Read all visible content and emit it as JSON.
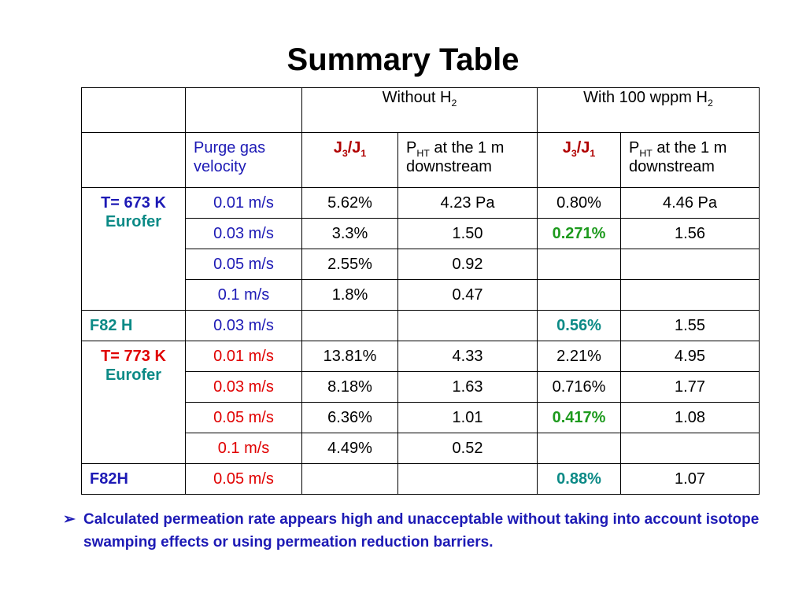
{
  "title": "Summary Table",
  "header": {
    "without": "Without H",
    "without_sub": "2",
    "with": "With 100 wppm H",
    "with_sub": "2"
  },
  "subheader": {
    "purge_label": "Purge gas velocity",
    "ratio_J": "J",
    "ratio_sub3": "3",
    "ratio_slash": "/J",
    "ratio_sub1": "1",
    "pressure_P": "P",
    "pressure_sub": "HT",
    "pressure_rest": " at the 1 m downstream"
  },
  "groups": {
    "g673_temp": "T= 673 K",
    "g673_mat": "Eurofer",
    "f82h_a": "F82 H",
    "g773_temp": "T= 773 K",
    "g773_mat": "Eurofer",
    "f82h_b": "F82H"
  },
  "rows": [
    {
      "velocity": "0.01 m/s",
      "j_without": "5.62%",
      "p_without": "4.23 Pa",
      "j_with": "0.80%",
      "p_with": "4.46 Pa"
    },
    {
      "velocity": "0.03 m/s",
      "j_without": "3.3%",
      "p_without": "1.50",
      "j_with": "0.271%",
      "p_with": "1.56"
    },
    {
      "velocity": "0.05 m/s",
      "j_without": "2.55%",
      "p_without": "0.92",
      "j_with": "",
      "p_with": ""
    },
    {
      "velocity": "0.1 m/s",
      "j_without": "1.8%",
      "p_without": "0.47",
      "j_with": "",
      "p_with": ""
    },
    {
      "velocity": "0.03 m/s",
      "j_without": "",
      "p_without": "",
      "j_with": "0.56%",
      "p_with": "1.55"
    },
    {
      "velocity": "0.01 m/s",
      "j_without": "13.81%",
      "p_without": "4.33",
      "j_with": "2.21%",
      "p_with": "4.95"
    },
    {
      "velocity": "0.03 m/s",
      "j_without": "8.18%",
      "p_without": "1.63",
      "j_with": "0.716%",
      "p_with": "1.77"
    },
    {
      "velocity": "0.05 m/s",
      "j_without": "6.36%",
      "p_without": "1.01",
      "j_with": "0.417%",
      "p_with": "1.08"
    },
    {
      "velocity": "0.1 m/s",
      "j_without": "4.49%",
      "p_without": "0.52",
      "j_with": "",
      "p_with": ""
    },
    {
      "velocity": "0.05 m/s",
      "j_without": "",
      "p_without": "",
      "j_with": "0.88%",
      "p_with": "1.07"
    }
  ],
  "note": {
    "bullet": "➢",
    "text": "Calculated permeation rate appears high and unacceptable without taking into account isotope swamping effects or using permeation reduction barriers."
  },
  "colors": {
    "blue": "#1d1ab5",
    "red": "#e00000",
    "teal": "#0b8a86",
    "green": "#1d9a1d",
    "darkred": "#b00000"
  }
}
